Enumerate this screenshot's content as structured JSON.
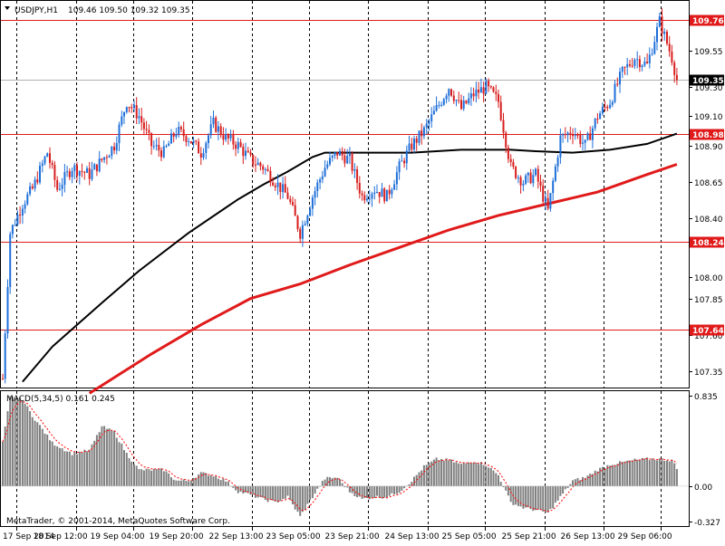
{
  "window": {
    "symbol_header": "USDJPY,H1",
    "ohlc": "109.46 109.50 109.32 109.35",
    "watermark": "MetaTrader, © 2001-2014, MetaQuotes Software Corp."
  },
  "colors": {
    "bull": "#1e6fd8",
    "bear": "#d81e1e",
    "ma_fast": "#e01a1a",
    "ma_slow": "#000000",
    "level_line": "#e01a1a",
    "macd_hist": "#808080",
    "macd_signal": "#ff0000",
    "grid": "#000000",
    "current_price_bg": "#000000"
  },
  "chart_data": [
    {
      "type": "candlestick",
      "symbol": "USDJPY",
      "timeframe": "H1",
      "ylim": [
        107.24,
        109.89
      ],
      "y_ticks": [
        107.35,
        107.6,
        107.85,
        108.0,
        108.4,
        108.65,
        108.9,
        109.1,
        109.3,
        109.55
      ],
      "x_ticks": [
        "17 Sep 2014",
        "18 Sep 12:00",
        "19 Sep 04:00",
        "19 Sep 20:00",
        "22 Sep 13:00",
        "23 Sep 05:00",
        "23 Sep 21:00",
        "24 Sep 13:00",
        "25 Sep 05:00",
        "25 Sep 21:00",
        "26 Sep 13:00",
        "29 Sep 06:00"
      ],
      "horizontal_levels": [
        {
          "value": 109.76,
          "label": "109.76"
        },
        {
          "value": 108.98,
          "label": "108.98"
        },
        {
          "value": 108.24,
          "label": "108.24"
        },
        {
          "value": 107.64,
          "label": "107.64"
        }
      ],
      "current_price": {
        "value": 109.35,
        "label": "109.35"
      },
      "price_anchors": [
        [
          0,
          107.3
        ],
        [
          3,
          108.3
        ],
        [
          8,
          108.5
        ],
        [
          12,
          108.6
        ],
        [
          18,
          108.85
        ],
        [
          22,
          108.6
        ],
        [
          28,
          108.75
        ],
        [
          35,
          108.7
        ],
        [
          40,
          108.8
        ],
        [
          45,
          108.9
        ],
        [
          50,
          109.2
        ],
        [
          55,
          109.1
        ],
        [
          60,
          108.9
        ],
        [
          65,
          108.85
        ],
        [
          70,
          109.0
        ],
        [
          75,
          108.95
        ],
        [
          80,
          108.85
        ],
        [
          85,
          109.05
        ],
        [
          90,
          108.95
        ],
        [
          95,
          108.9
        ],
        [
          100,
          108.8
        ],
        [
          105,
          108.75
        ],
        [
          110,
          108.65
        ],
        [
          115,
          108.55
        ],
        [
          120,
          108.3
        ],
        [
          125,
          108.55
        ],
        [
          130,
          108.75
        ],
        [
          135,
          108.85
        ],
        [
          140,
          108.8
        ],
        [
          145,
          108.55
        ],
        [
          150,
          108.6
        ],
        [
          155,
          108.55
        ],
        [
          160,
          108.75
        ],
        [
          165,
          108.9
        ],
        [
          170,
          109.0
        ],
        [
          175,
          109.15
        ],
        [
          180,
          109.3
        ],
        [
          185,
          109.15
        ],
        [
          190,
          109.25
        ],
        [
          195,
          109.3
        ],
        [
          200,
          109.2
        ],
        [
          205,
          108.75
        ],
        [
          210,
          108.65
        ],
        [
          215,
          108.7
        ],
        [
          220,
          108.45
        ],
        [
          225,
          108.95
        ],
        [
          230,
          109.0
        ],
        [
          235,
          108.9
        ],
        [
          240,
          109.1
        ],
        [
          245,
          109.2
        ],
        [
          250,
          109.4
        ],
        [
          255,
          109.5
        ],
        [
          260,
          109.45
        ],
        [
          265,
          109.75
        ],
        [
          270,
          109.5
        ],
        [
          272,
          109.35
        ]
      ],
      "ma_fast": [
        [
          35,
          107.2
        ],
        [
          60,
          107.47
        ],
        [
          80,
          107.67
        ],
        [
          100,
          107.85
        ],
        [
          120,
          107.95
        ],
        [
          140,
          108.08
        ],
        [
          160,
          108.2
        ],
        [
          180,
          108.32
        ],
        [
          200,
          108.42
        ],
        [
          220,
          108.5
        ],
        [
          240,
          108.58
        ],
        [
          260,
          108.7
        ],
        [
          272,
          108.77
        ]
      ],
      "ma_slow": [
        [
          8,
          107.28
        ],
        [
          20,
          107.52
        ],
        [
          30,
          107.67
        ],
        [
          40,
          107.82
        ],
        [
          55,
          108.04
        ],
        [
          75,
          108.3
        ],
        [
          95,
          108.53
        ],
        [
          105,
          108.63
        ],
        [
          115,
          108.72
        ],
        [
          125,
          108.82
        ],
        [
          130,
          108.85
        ],
        [
          135,
          108.85
        ],
        [
          150,
          108.85
        ],
        [
          165,
          108.85
        ],
        [
          185,
          108.87
        ],
        [
          205,
          108.87
        ],
        [
          215,
          108.86
        ],
        [
          230,
          108.85
        ],
        [
          245,
          108.87
        ],
        [
          260,
          108.91
        ],
        [
          272,
          108.98
        ]
      ],
      "candle_count": 273
    },
    {
      "type": "bar",
      "title": "MACD(5,34,5) 0.161 0.245",
      "ylim": [
        -0.327,
        0.835
      ],
      "y_ticks": [
        0.835,
        0.0,
        -0.327
      ],
      "histogram_anchors": [
        [
          0,
          0.4
        ],
        [
          3,
          0.82
        ],
        [
          8,
          0.8
        ],
        [
          12,
          0.65
        ],
        [
          20,
          0.4
        ],
        [
          28,
          0.3
        ],
        [
          35,
          0.33
        ],
        [
          40,
          0.55
        ],
        [
          45,
          0.5
        ],
        [
          50,
          0.3
        ],
        [
          55,
          0.15
        ],
        [
          60,
          0.15
        ],
        [
          65,
          0.15
        ],
        [
          70,
          0.05
        ],
        [
          75,
          0.05
        ],
        [
          80,
          0.12
        ],
        [
          85,
          0.1
        ],
        [
          90,
          0.05
        ],
        [
          95,
          -0.05
        ],
        [
          100,
          -0.08
        ],
        [
          105,
          -0.12
        ],
        [
          110,
          -0.15
        ],
        [
          115,
          -0.1
        ],
        [
          120,
          -0.28
        ],
        [
          125,
          -0.1
        ],
        [
          130,
          0.07
        ],
        [
          135,
          0.08
        ],
        [
          140,
          -0.05
        ],
        [
          145,
          -0.12
        ],
        [
          150,
          -0.1
        ],
        [
          155,
          -0.1
        ],
        [
          160,
          -0.05
        ],
        [
          165,
          0.05
        ],
        [
          170,
          0.18
        ],
        [
          175,
          0.25
        ],
        [
          180,
          0.24
        ],
        [
          185,
          0.2
        ],
        [
          190,
          0.23
        ],
        [
          195,
          0.2
        ],
        [
          200,
          0.1
        ],
        [
          205,
          -0.15
        ],
        [
          210,
          -0.2
        ],
        [
          215,
          -0.22
        ],
        [
          220,
          -0.25
        ],
        [
          225,
          -0.1
        ],
        [
          230,
          0.05
        ],
        [
          235,
          0.08
        ],
        [
          240,
          0.15
        ],
        [
          245,
          0.2
        ],
        [
          250,
          0.22
        ],
        [
          255,
          0.24
        ],
        [
          260,
          0.25
        ],
        [
          265,
          0.25
        ],
        [
          270,
          0.24
        ],
        [
          272,
          0.16
        ]
      ]
    }
  ]
}
